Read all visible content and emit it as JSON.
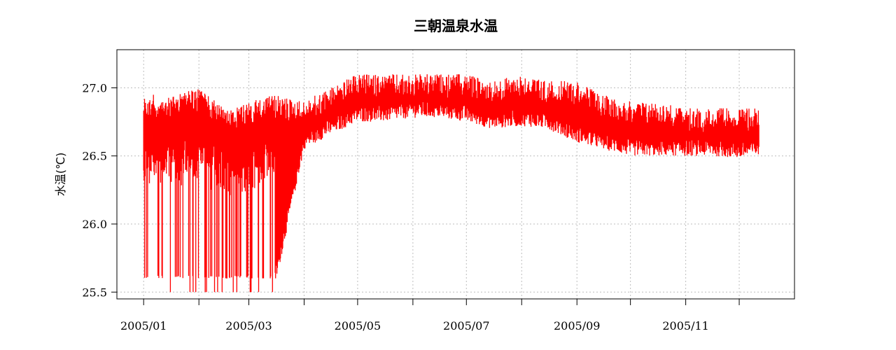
{
  "chart_data": {
    "type": "line",
    "title": "三朝温泉水温",
    "ylabel": "水温(℃)",
    "xlabel": "",
    "x_tick_labels": [
      "2005/01",
      "2005/03",
      "2005/05",
      "2005/07",
      "2005/09",
      "2005/11"
    ],
    "x_ticks_all": [
      "2005-01-01",
      "2005-02-01",
      "2005-03-01",
      "2005-04-01",
      "2005-05-01",
      "2005-06-01",
      "2005-07-01",
      "2005-08-01",
      "2005-09-01",
      "2005-10-01",
      "2005-11-01",
      "2005-12-01"
    ],
    "y_ticks": [
      "25.5",
      "26.0",
      "26.5",
      "27.0"
    ],
    "xlim": [
      "2004-12-17",
      "2006-01-01"
    ],
    "ylim": [
      25.45,
      27.28
    ],
    "grid": true,
    "series": [
      {
        "color": "#ff0000",
        "kind": "high-frequency fluctuating daily range",
        "date": [
          "2005-01-01",
          "2005-01-15",
          "2005-02-01",
          "2005-02-15",
          "2005-03-01",
          "2005-03-15",
          "2005-04-01",
          "2005-04-15",
          "2005-05-01",
          "2005-05-15",
          "2005-06-01",
          "2005-06-15",
          "2005-07-01",
          "2005-07-15",
          "2005-08-01",
          "2005-08-15",
          "2005-09-01",
          "2005-09-15",
          "2005-10-01",
          "2005-10-15",
          "2005-11-01",
          "2005-11-15",
          "2005-12-01",
          "2005-12-12"
        ],
        "upper": [
          26.95,
          26.95,
          27.0,
          26.85,
          26.9,
          26.95,
          26.9,
          27.0,
          27.1,
          27.1,
          27.1,
          27.1,
          27.1,
          27.05,
          27.1,
          27.05,
          27.05,
          26.95,
          26.9,
          26.9,
          26.85,
          26.85,
          26.85,
          26.85
        ],
        "lower": [
          25.5,
          25.5,
          25.5,
          25.5,
          25.5,
          25.5,
          26.55,
          26.65,
          26.75,
          26.75,
          26.78,
          26.78,
          26.75,
          26.7,
          26.72,
          26.7,
          26.6,
          26.55,
          26.5,
          26.5,
          26.5,
          26.5,
          26.48,
          26.5
        ]
      }
    ],
    "annotations": []
  }
}
